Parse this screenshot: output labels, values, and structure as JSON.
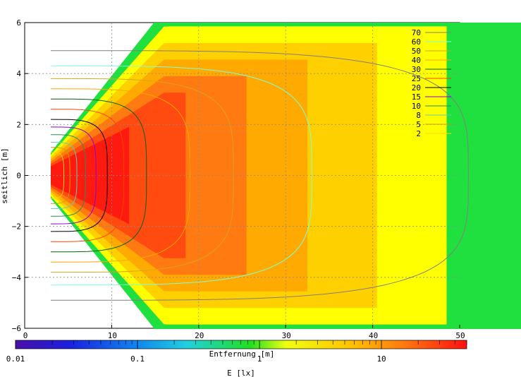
{
  "chart_data": {
    "type": "heatmap",
    "title": "",
    "xlabel": "Entfernung [m]",
    "ylabel": "seitlich [m]",
    "xlim": [
      0,
      50
    ],
    "ylim": [
      -6,
      6
    ],
    "x_ticks": [
      "0",
      "10",
      "20",
      "30",
      "40",
      "50"
    ],
    "y_ticks": [
      "6",
      "4",
      "2",
      "0",
      "−2",
      "−4",
      "−6"
    ],
    "grid": true,
    "legend_position": "top-right",
    "contour_levels": [
      {
        "label": "70",
        "color": "#808080"
      },
      {
        "label": "60",
        "color": "#7fffd4"
      },
      {
        "label": "50",
        "color": "#daa520"
      },
      {
        "label": "40",
        "color": "#ffa500"
      },
      {
        "label": "30",
        "color": "#006400"
      },
      {
        "label": "25",
        "color": "#ff4500"
      },
      {
        "label": "20",
        "color": "#000000"
      },
      {
        "label": "15",
        "color": "#9400d3"
      },
      {
        "label": "10",
        "color": "#2e8b57"
      },
      {
        "label": "8",
        "color": "#66cdaa"
      },
      {
        "label": "5",
        "color": "#c8a000"
      },
      {
        "label": "2",
        "color": "#ffd700"
      }
    ],
    "colorbar": {
      "label": "E [lx]",
      "scale": "log",
      "ticks": [
        "0.01",
        "0.1",
        "1",
        "10"
      ],
      "range": [
        0.01,
        50
      ]
    }
  }
}
